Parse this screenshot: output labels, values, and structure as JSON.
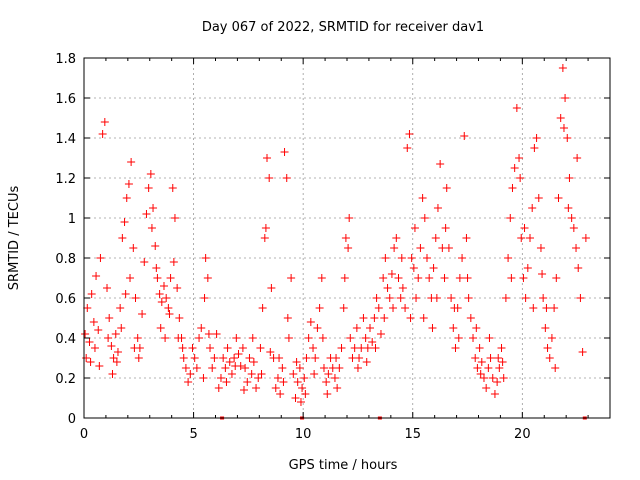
{
  "chart_data": {
    "type": "scatter",
    "title": "Day 067 of 2022, SRMTID for receiver dav1",
    "xlabel": "GPS time / hours",
    "ylabel": "SRMTID / TECUs",
    "xlim": [
      0,
      24
    ],
    "ylim": [
      0,
      1.8
    ],
    "xticks": [
      0,
      5,
      10,
      15,
      20
    ],
    "xtick_labels": [
      "0",
      "5",
      "10",
      "15",
      "20"
    ],
    "yticks": [
      0,
      0.2,
      0.4,
      0.6,
      0.8,
      1.0,
      1.2,
      1.4,
      1.6,
      1.8
    ],
    "ytick_labels": [
      "0",
      "0.2",
      "0.4",
      "0.6",
      "0.8",
      "1",
      "1.2",
      "1.4",
      "1.6",
      "1.8"
    ],
    "grid": true,
    "marker": "+",
    "color": "#ff0000",
    "series": [
      {
        "name": "SRMTID",
        "points": [
          [
            0.05,
            0.42
          ],
          [
            0.15,
            0.55
          ],
          [
            0.25,
            0.38
          ],
          [
            0.35,
            0.62
          ],
          [
            0.45,
            0.48
          ],
          [
            0.55,
            0.71
          ],
          [
            0.65,
            0.44
          ],
          [
            0.75,
            0.8
          ],
          [
            0.85,
            1.42
          ],
          [
            0.95,
            1.48
          ],
          [
            1.05,
            0.65
          ],
          [
            1.15,
            0.5
          ],
          [
            1.25,
            0.36
          ],
          [
            1.35,
            0.3
          ],
          [
            1.45,
            0.42
          ],
          [
            1.55,
            0.33
          ],
          [
            1.65,
            0.55
          ],
          [
            1.75,
            0.9
          ],
          [
            1.85,
            0.98
          ],
          [
            1.95,
            1.1
          ],
          [
            2.05,
            1.17
          ],
          [
            2.15,
            1.28
          ],
          [
            2.25,
            0.85
          ],
          [
            2.35,
            0.6
          ],
          [
            2.45,
            0.4
          ],
          [
            2.55,
            0.35
          ],
          [
            2.65,
            0.52
          ],
          [
            2.75,
            0.78
          ],
          [
            2.85,
            1.02
          ],
          [
            2.95,
            1.15
          ],
          [
            3.05,
            1.22
          ],
          [
            3.15,
            1.05
          ],
          [
            3.25,
            0.86
          ],
          [
            3.35,
            0.7
          ],
          [
            3.45,
            0.62
          ],
          [
            3.55,
            0.58
          ],
          [
            3.65,
            0.66
          ],
          [
            3.75,
            0.6
          ],
          [
            3.85,
            0.55
          ],
          [
            3.95,
            0.7
          ],
          [
            4.05,
            1.15
          ],
          [
            4.15,
            1.0
          ],
          [
            4.25,
            0.65
          ],
          [
            4.35,
            0.5
          ],
          [
            4.45,
            0.4
          ],
          [
            4.55,
            0.3
          ],
          [
            4.65,
            0.25
          ],
          [
            4.75,
            0.18
          ],
          [
            4.85,
            0.22
          ],
          [
            4.95,
            0.35
          ],
          [
            5.05,
            0.3
          ],
          [
            5.15,
            0.25
          ],
          [
            5.25,
            0.4
          ],
          [
            5.35,
            0.45
          ],
          [
            5.45,
            0.2
          ],
          [
            5.55,
            0.8
          ],
          [
            5.65,
            0.7
          ],
          [
            5.75,
            0.35
          ],
          [
            5.85,
            0.25
          ],
          [
            5.95,
            0.3
          ],
          [
            6.05,
            0.42
          ],
          [
            6.15,
            0.15
          ],
          [
            6.25,
            0.2
          ],
          [
            6.35,
            0.3
          ],
          [
            6.45,
            0.25
          ],
          [
            6.55,
            0.35
          ],
          [
            6.65,
            0.28
          ],
          [
            6.75,
            0.22
          ],
          [
            6.85,
            0.3
          ],
          [
            6.95,
            0.4
          ],
          [
            7.05,
            0.32
          ],
          [
            7.15,
            0.26
          ],
          [
            7.25,
            0.35
          ],
          [
            7.35,
            0.25
          ],
          [
            7.45,
            0.18
          ],
          [
            7.55,
            0.3
          ],
          [
            7.65,
            0.22
          ],
          [
            7.75,
            0.28
          ],
          [
            7.85,
            0.15
          ],
          [
            7.95,
            0.2
          ],
          [
            8.05,
            0.35
          ],
          [
            8.15,
            0.55
          ],
          [
            8.25,
            0.9
          ],
          [
            8.35,
            1.3
          ],
          [
            8.45,
            1.2
          ],
          [
            8.55,
            0.65
          ],
          [
            8.65,
            0.3
          ],
          [
            8.75,
            0.15
          ],
          [
            8.85,
            0.2
          ],
          [
            8.95,
            0.12
          ],
          [
            9.05,
            0.25
          ],
          [
            9.15,
            1.33
          ],
          [
            9.25,
            1.2
          ],
          [
            9.35,
            0.4
          ],
          [
            9.45,
            0.7
          ],
          [
            9.55,
            0.22
          ],
          [
            9.65,
            0.1
          ],
          [
            9.75,
            0.18
          ],
          [
            9.85,
            0.25
          ],
          [
            9.95,
            0.15
          ],
          [
            10.05,
            0.2
          ],
          [
            10.15,
            0.3
          ],
          [
            10.25,
            0.4
          ],
          [
            10.35,
            0.48
          ],
          [
            10.45,
            0.35
          ],
          [
            10.55,
            0.3
          ],
          [
            10.65,
            0.45
          ],
          [
            10.75,
            0.55
          ],
          [
            10.85,
            0.7
          ],
          [
            10.95,
            0.25
          ],
          [
            11.05,
            0.18
          ],
          [
            11.15,
            0.22
          ],
          [
            11.25,
            0.3
          ],
          [
            11.35,
            0.25
          ],
          [
            11.45,
            0.2
          ],
          [
            11.55,
            0.15
          ],
          [
            11.65,
            0.25
          ],
          [
            11.75,
            0.35
          ],
          [
            11.85,
            0.55
          ],
          [
            11.95,
            0.9
          ],
          [
            12.05,
            0.85
          ],
          [
            12.15,
            0.4
          ],
          [
            12.25,
            0.3
          ],
          [
            12.35,
            0.35
          ],
          [
            12.45,
            0.45
          ],
          [
            12.55,
            0.3
          ],
          [
            12.65,
            0.35
          ],
          [
            12.75,
            0.5
          ],
          [
            12.85,
            0.4
          ],
          [
            12.95,
            0.35
          ],
          [
            13.05,
            0.45
          ],
          [
            13.15,
            0.38
          ],
          [
            13.25,
            0.5
          ],
          [
            13.35,
            0.6
          ],
          [
            13.45,
            0.55
          ],
          [
            13.55,
            0.42
          ],
          [
            13.65,
            0.7
          ],
          [
            13.75,
            0.8
          ],
          [
            13.85,
            0.65
          ],
          [
            13.95,
            0.6
          ],
          [
            14.05,
            0.72
          ],
          [
            14.15,
            0.85
          ],
          [
            14.25,
            0.9
          ],
          [
            14.35,
            0.7
          ],
          [
            14.45,
            0.6
          ],
          [
            14.55,
            0.65
          ],
          [
            14.65,
            0.55
          ],
          [
            14.75,
            1.35
          ],
          [
            14.85,
            1.42
          ],
          [
            14.95,
            0.8
          ],
          [
            15.05,
            0.75
          ],
          [
            15.15,
            0.6
          ],
          [
            15.25,
            0.7
          ],
          [
            15.35,
            0.85
          ],
          [
            15.45,
            1.1
          ],
          [
            15.55,
            1.0
          ],
          [
            15.65,
            0.8
          ],
          [
            15.75,
            0.7
          ],
          [
            15.85,
            0.6
          ],
          [
            15.95,
            0.75
          ],
          [
            16.05,
            0.9
          ],
          [
            16.15,
            1.05
          ],
          [
            16.25,
            1.27
          ],
          [
            16.35,
            0.85
          ],
          [
            16.45,
            0.7
          ],
          [
            16.55,
            1.15
          ],
          [
            16.65,
            0.85
          ],
          [
            16.75,
            0.6
          ],
          [
            16.85,
            0.45
          ],
          [
            16.95,
            0.35
          ],
          [
            17.05,
            0.55
          ],
          [
            17.15,
            0.7
          ],
          [
            17.25,
            0.8
          ],
          [
            17.35,
            1.41
          ],
          [
            17.45,
            0.9
          ],
          [
            17.55,
            0.6
          ],
          [
            17.65,
            0.5
          ],
          [
            17.75,
            0.4
          ],
          [
            17.85,
            0.3
          ],
          [
            17.95,
            0.25
          ],
          [
            18.05,
            0.35
          ],
          [
            18.15,
            0.28
          ],
          [
            18.25,
            0.2
          ],
          [
            18.35,
            0.15
          ],
          [
            18.45,
            0.25
          ],
          [
            18.55,
            0.3
          ],
          [
            18.65,
            0.2
          ],
          [
            18.75,
            0.12
          ],
          [
            18.85,
            0.18
          ],
          [
            18.95,
            0.25
          ],
          [
            19.05,
            0.35
          ],
          [
            19.15,
            0.2
          ],
          [
            19.25,
            0.6
          ],
          [
            19.35,
            0.8
          ],
          [
            19.45,
            1.0
          ],
          [
            19.55,
            1.15
          ],
          [
            19.65,
            1.25
          ],
          [
            19.75,
            1.55
          ],
          [
            19.85,
            1.3
          ],
          [
            19.95,
            0.9
          ],
          [
            20.05,
            0.7
          ],
          [
            20.15,
            0.6
          ],
          [
            20.25,
            0.75
          ],
          [
            20.35,
            0.9
          ],
          [
            20.45,
            1.05
          ],
          [
            20.55,
            1.35
          ],
          [
            20.65,
            1.4
          ],
          [
            20.75,
            1.1
          ],
          [
            20.85,
            0.85
          ],
          [
            20.95,
            0.6
          ],
          [
            21.05,
            0.45
          ],
          [
            21.15,
            0.35
          ],
          [
            21.25,
            0.3
          ],
          [
            21.35,
            0.4
          ],
          [
            21.45,
            0.55
          ],
          [
            21.55,
            0.7
          ],
          [
            21.65,
            1.1
          ],
          [
            21.75,
            1.5
          ],
          [
            21.85,
            1.75
          ],
          [
            21.95,
            1.6
          ],
          [
            22.05,
            1.4
          ],
          [
            22.15,
            1.2
          ],
          [
            22.25,
            1.0
          ],
          [
            22.35,
            0.95
          ],
          [
            22.45,
            0.85
          ],
          [
            22.55,
            0.75
          ],
          [
            22.65,
            0.6
          ],
          [
            22.75,
            0.33
          ],
          [
            0.1,
            0.3
          ],
          [
            0.3,
            0.28
          ],
          [
            0.5,
            0.35
          ],
          [
            0.7,
            0.26
          ],
          [
            1.1,
            0.4
          ],
          [
            1.3,
            0.22
          ],
          [
            1.5,
            0.28
          ],
          [
            1.7,
            0.45
          ],
          [
            1.9,
            0.62
          ],
          [
            2.1,
            0.7
          ],
          [
            2.3,
            0.35
          ],
          [
            2.5,
            0.3
          ],
          [
            3.1,
            0.95
          ],
          [
            3.3,
            0.75
          ],
          [
            3.5,
            0.45
          ],
          [
            3.7,
            0.4
          ],
          [
            3.9,
            0.52
          ],
          [
            4.1,
            0.78
          ],
          [
            4.3,
            0.4
          ],
          [
            4.5,
            0.35
          ],
          [
            5.5,
            0.6
          ],
          [
            5.7,
            0.42
          ],
          [
            6.5,
            0.18
          ],
          [
            6.9,
            0.26
          ],
          [
            7.3,
            0.14
          ],
          [
            7.7,
            0.4
          ],
          [
            8.1,
            0.22
          ],
          [
            8.3,
            0.95
          ],
          [
            8.5,
            0.33
          ],
          [
            8.9,
            0.3
          ],
          [
            9.1,
            0.18
          ],
          [
            9.3,
            0.5
          ],
          [
            9.7,
            0.28
          ],
          [
            9.9,
            0.08
          ],
          [
            10.1,
            0.12
          ],
          [
            10.5,
            0.22
          ],
          [
            10.9,
            0.4
          ],
          [
            11.1,
            0.12
          ],
          [
            11.5,
            0.3
          ],
          [
            11.9,
            0.7
          ],
          [
            12.1,
            1.0
          ],
          [
            12.5,
            0.25
          ],
          [
            12.9,
            0.28
          ],
          [
            13.3,
            0.35
          ],
          [
            13.7,
            0.5
          ],
          [
            14.1,
            0.55
          ],
          [
            14.5,
            0.8
          ],
          [
            14.9,
            0.5
          ],
          [
            15.1,
            0.95
          ],
          [
            15.5,
            0.5
          ],
          [
            15.9,
            0.45
          ],
          [
            16.1,
            0.6
          ],
          [
            16.5,
            0.95
          ],
          [
            16.9,
            0.55
          ],
          [
            17.1,
            0.4
          ],
          [
            17.5,
            0.7
          ],
          [
            17.9,
            0.45
          ],
          [
            18.1,
            0.22
          ],
          [
            18.5,
            0.4
          ],
          [
            18.9,
            0.3
          ],
          [
            19.1,
            0.28
          ],
          [
            19.5,
            0.7
          ],
          [
            19.9,
            1.2
          ],
          [
            20.1,
            0.95
          ],
          [
            20.5,
            0.55
          ],
          [
            20.9,
            0.72
          ],
          [
            21.1,
            0.55
          ],
          [
            21.5,
            0.25
          ],
          [
            21.9,
            1.45
          ],
          [
            22.1,
            1.05
          ],
          [
            22.5,
            1.3
          ],
          [
            22.9,
            0.9
          ]
        ]
      }
    ],
    "gap_markers_x": [
      6.3,
      9.95,
      13.5,
      22.85
    ]
  }
}
